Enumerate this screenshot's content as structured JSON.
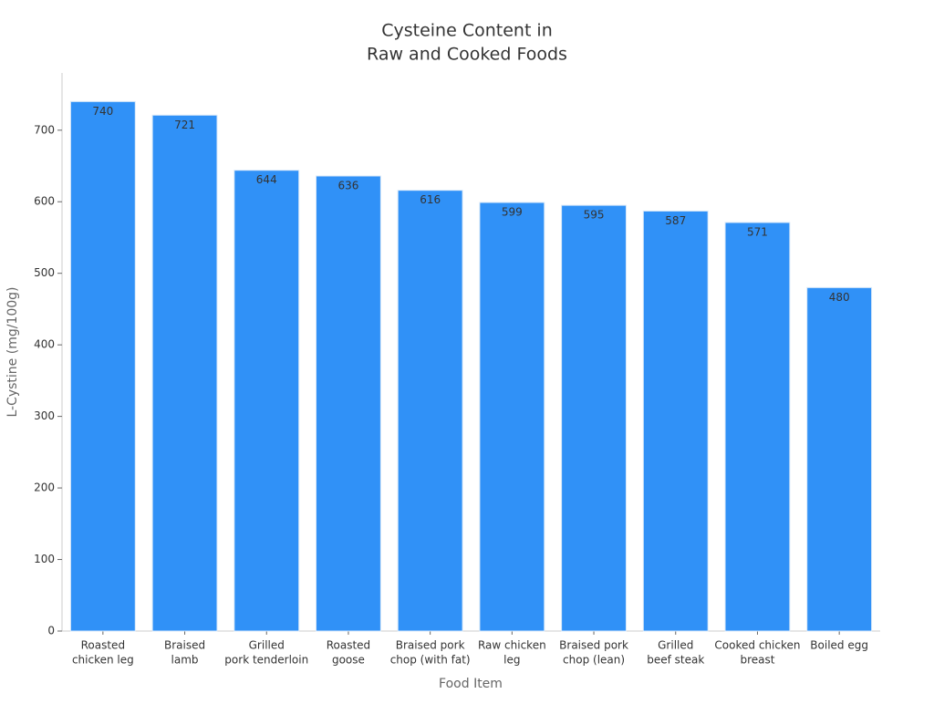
{
  "chart_data": {
    "type": "bar",
    "title": [
      "Cysteine Content in",
      "Raw and Cooked Foods"
    ],
    "x_label": "Food Item",
    "y_label": "L-Cystine (mg/100g)",
    "categories": [
      [
        "Roasted",
        "chicken leg"
      ],
      [
        "Braised",
        "lamb"
      ],
      [
        "Grilled",
        "pork tenderloin"
      ],
      [
        "Roasted",
        "goose"
      ],
      [
        "Braised pork",
        "chop (with fat)"
      ],
      [
        "Raw chicken",
        "leg"
      ],
      [
        "Braised pork",
        "chop (lean)"
      ],
      [
        "Grilled",
        "beef steak"
      ],
      [
        "Cooked chicken",
        "breast"
      ],
      [
        "Boiled egg"
      ]
    ],
    "values": [
      740,
      721,
      644,
      636,
      616,
      599,
      595,
      587,
      571,
      480
    ],
    "color": "#3091f7",
    "ylim": [
      0,
      780
    ],
    "yticks": [
      0,
      100,
      200,
      300,
      400,
      500,
      600,
      700
    ],
    "grid": false
  }
}
